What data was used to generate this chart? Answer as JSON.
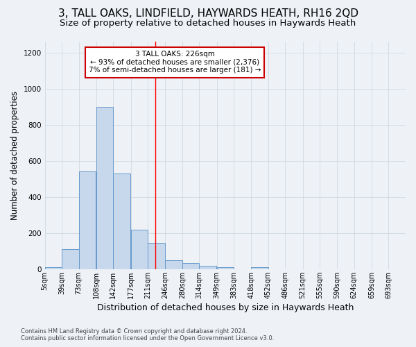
{
  "title": "3, TALL OAKS, LINDFIELD, HAYWARDS HEATH, RH16 2QD",
  "subtitle": "Size of property relative to detached houses in Haywards Heath",
  "xlabel": "Distribution of detached houses by size in Haywards Heath",
  "ylabel": "Number of detached properties",
  "footer_line1": "Contains HM Land Registry data © Crown copyright and database right 2024.",
  "footer_line2": "Contains public sector information licensed under the Open Government Licence v3.0.",
  "bin_edges": [
    5,
    39,
    73,
    108,
    142,
    177,
    211,
    246,
    280,
    314,
    349,
    383,
    418,
    452,
    486,
    521,
    555,
    590,
    624,
    659,
    693
  ],
  "bar_heights": [
    10,
    110,
    540,
    900,
    530,
    220,
    145,
    50,
    35,
    20,
    10,
    0,
    10,
    0,
    0,
    0,
    0,
    0,
    0,
    0
  ],
  "bar_color": "#c8d8ec",
  "bar_edge_color": "#6699cc",
  "grid_color": "#d0d8e0",
  "bg_color": "#eef2f7",
  "plot_bg_color": "#eef2f7",
  "red_line_x": 226,
  "annotation_text": "3 TALL OAKS: 226sqm\n← 93% of detached houses are smaller (2,376)\n7% of semi-detached houses are larger (181) →",
  "annotation_box_facecolor": "#ffffff",
  "annotation_border_color": "#cc0000",
  "ylim": [
    0,
    1260
  ],
  "yticks": [
    0,
    200,
    400,
    600,
    800,
    1000,
    1200
  ],
  "title_fontsize": 11,
  "subtitle_fontsize": 9.5,
  "tick_label_size": 7,
  "ylabel_fontsize": 8.5,
  "xlabel_fontsize": 9
}
